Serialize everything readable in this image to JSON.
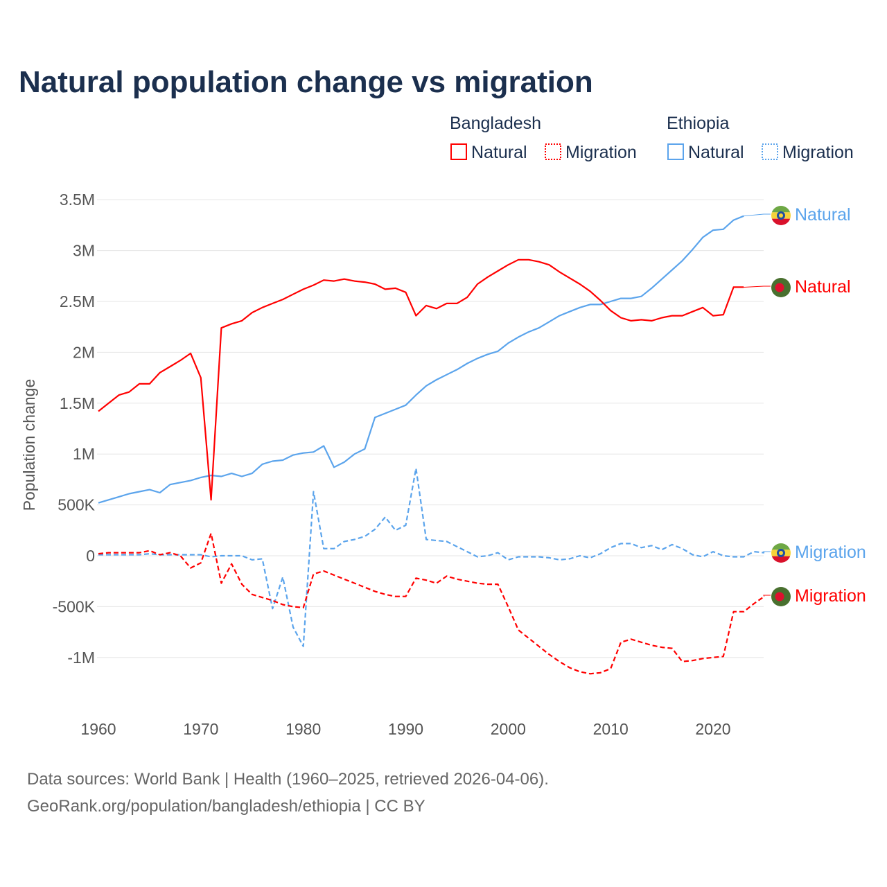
{
  "title": "Natural population change vs migration",
  "legend": {
    "groups": [
      {
        "name": "Bangladesh",
        "items": [
          {
            "label": "Natural",
            "style": "solid"
          },
          {
            "label": "Migration",
            "style": "dotted"
          }
        ],
        "color": "#ff0000"
      },
      {
        "name": "Ethiopia",
        "items": [
          {
            "label": "Natural",
            "style": "solid"
          },
          {
            "label": "Migration",
            "style": "dotted"
          }
        ],
        "color": "#5ba4ec"
      }
    ]
  },
  "source_lines": [
    "Data sources: World Bank | Health (1960–2025, retrieved 2026-04-06).",
    "GeoRank.org/population/bangladesh/ethiopia | CC BY"
  ],
  "chart_data": {
    "type": "line",
    "title": "Natural population change vs migration",
    "xlabel": "",
    "ylabel": "Population change",
    "xlim": [
      1960,
      2025
    ],
    "ylim": [
      -1250000,
      3500000
    ],
    "xticks": [
      1960,
      1970,
      1980,
      1990,
      2000,
      2010,
      2020
    ],
    "yticks": [
      {
        "v": 3500000,
        "label": "3.5M"
      },
      {
        "v": 3000000,
        "label": "3M"
      },
      {
        "v": 2500000,
        "label": "2.5M"
      },
      {
        "v": 2000000,
        "label": "2M"
      },
      {
        "v": 1500000,
        "label": "1.5M"
      },
      {
        "v": 1000000,
        "label": "1M"
      },
      {
        "v": 500000,
        "label": "500K"
      },
      {
        "v": 0,
        "label": "0"
      },
      {
        "v": -500000,
        "label": "-500K"
      },
      {
        "v": -1000000,
        "label": "-1M"
      }
    ],
    "grid": true,
    "legend_position": "top-right",
    "unit": "millions",
    "series": [
      {
        "name": "Ethiopia Natural",
        "country": "Ethiopia",
        "end_label": "Natural",
        "color": "#5ba4ec",
        "dash": "solid",
        "start": 1960,
        "values": [
          0.52,
          0.55,
          0.58,
          0.61,
          0.63,
          0.65,
          0.62,
          0.7,
          0.72,
          0.74,
          0.77,
          0.79,
          0.78,
          0.81,
          0.78,
          0.81,
          0.9,
          0.93,
          0.94,
          0.99,
          1.01,
          1.02,
          1.08,
          0.87,
          0.92,
          1.0,
          1.05,
          1.36,
          1.4,
          1.44,
          1.48,
          1.58,
          1.67,
          1.73,
          1.78,
          1.83,
          1.89,
          1.94,
          1.98,
          2.01,
          2.09,
          2.15,
          2.2,
          2.24,
          2.3,
          2.36,
          2.4,
          2.44,
          2.47,
          2.47,
          2.5,
          2.53,
          2.53,
          2.55,
          2.63,
          2.72,
          2.81,
          2.9,
          3.01,
          3.13,
          3.2,
          3.21,
          3.3,
          3.34
        ]
      },
      {
        "name": "Bangladesh Natural",
        "country": "Bangladesh",
        "end_label": "Natural",
        "color": "#ff0000",
        "dash": "solid",
        "start": 1960,
        "values": [
          1.42,
          1.5,
          1.58,
          1.61,
          1.69,
          1.69,
          1.8,
          1.86,
          1.92,
          1.99,
          1.75,
          0.55,
          2.24,
          2.28,
          2.31,
          2.39,
          2.44,
          2.48,
          2.52,
          2.57,
          2.62,
          2.66,
          2.71,
          2.7,
          2.72,
          2.7,
          2.69,
          2.67,
          2.62,
          2.63,
          2.59,
          2.36,
          2.46,
          2.43,
          2.48,
          2.48,
          2.54,
          2.67,
          2.74,
          2.8,
          2.86,
          2.91,
          2.91,
          2.89,
          2.86,
          2.79,
          2.73,
          2.67,
          2.6,
          2.51,
          2.41,
          2.34,
          2.31,
          2.32,
          2.31,
          2.34,
          2.36,
          2.36,
          2.4,
          2.44,
          2.36,
          2.37,
          2.64,
          2.64
        ]
      },
      {
        "name": "Ethiopia Migration",
        "country": "Ethiopia",
        "end_label": "Migration",
        "color": "#5ba4ec",
        "dash": "dashed",
        "start": 1960,
        "values": [
          0.01,
          0.01,
          0.01,
          0.01,
          0.01,
          0.02,
          0.01,
          0.01,
          0.01,
          0.01,
          0.01,
          -0.01,
          0.0,
          0.0,
          0.0,
          -0.04,
          -0.03,
          -0.52,
          -0.21,
          -0.7,
          -0.89,
          0.63,
          0.07,
          0.07,
          0.14,
          0.16,
          0.19,
          0.26,
          0.38,
          0.25,
          0.3,
          0.86,
          0.16,
          0.15,
          0.14,
          0.09,
          0.04,
          -0.01,
          0.0,
          0.03,
          -0.04,
          -0.01,
          -0.01,
          -0.01,
          -0.02,
          -0.04,
          -0.03,
          0.0,
          -0.02,
          0.02,
          0.08,
          0.12,
          0.12,
          0.08,
          0.1,
          0.06,
          0.11,
          0.07,
          0.01,
          -0.01,
          0.04,
          0.0,
          -0.01,
          -0.01,
          0.04,
          0.03
        ]
      },
      {
        "name": "Bangladesh Migration",
        "country": "Bangladesh",
        "end_label": "Migration",
        "color": "#ff0000",
        "dash": "dashed",
        "start": 1960,
        "values": [
          0.02,
          0.03,
          0.03,
          0.03,
          0.03,
          0.05,
          0.01,
          0.03,
          0.0,
          -0.12,
          -0.07,
          0.22,
          -0.27,
          -0.08,
          -0.28,
          -0.38,
          -0.41,
          -0.44,
          -0.48,
          -0.5,
          -0.51,
          -0.18,
          -0.15,
          -0.19,
          -0.23,
          -0.27,
          -0.31,
          -0.35,
          -0.38,
          -0.4,
          -0.4,
          -0.22,
          -0.24,
          -0.27,
          -0.2,
          -0.23,
          -0.25,
          -0.27,
          -0.28,
          -0.28,
          -0.5,
          -0.73,
          -0.81,
          -0.89,
          -0.97,
          -1.04,
          -1.1,
          -1.14,
          -1.16,
          -1.15,
          -1.11,
          -0.85,
          -0.82,
          -0.85,
          -0.88,
          -0.9,
          -0.91,
          -1.04,
          -1.03,
          -1.01,
          -1.0,
          -0.99,
          -0.55,
          -0.55,
          -0.47,
          -0.4
        ]
      }
    ]
  }
}
